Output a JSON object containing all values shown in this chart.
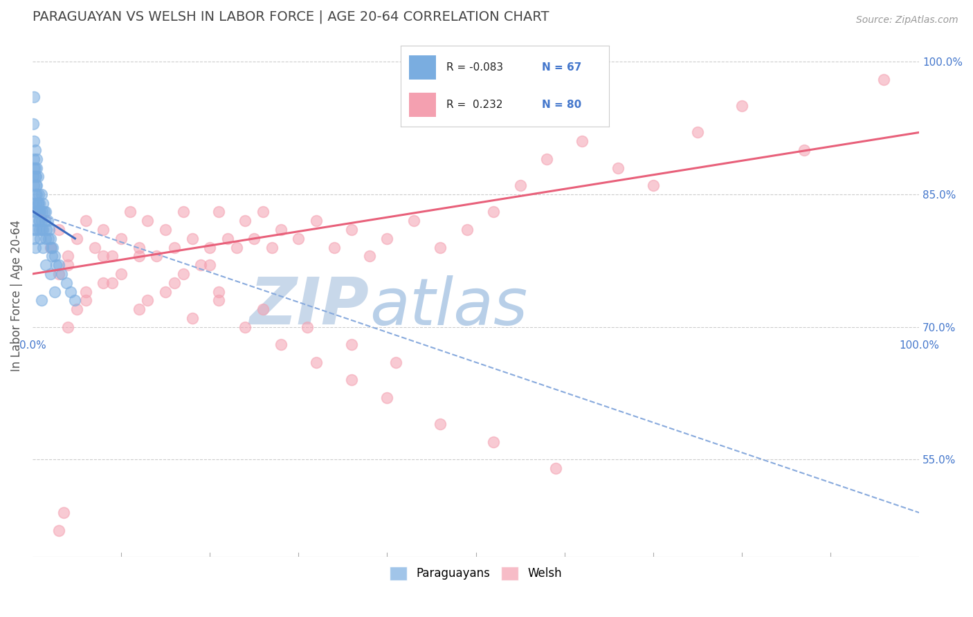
{
  "title": "PARAGUAYAN VS WELSH IN LABOR FORCE | AGE 20-64 CORRELATION CHART",
  "source_text": "Source: ZipAtlas.com",
  "ylabel": "In Labor Force | Age 20-64",
  "xlim": [
    0.0,
    1.0
  ],
  "ylim": [
    0.44,
    1.03
  ],
  "yticks_right": [
    0.55,
    0.7,
    0.85,
    1.0
  ],
  "ytick_right_labels": [
    "55.0%",
    "70.0%",
    "85.0%",
    "100.0%"
  ],
  "legend_r_paraguayan": "-0.083",
  "legend_n_paraguayan": "67",
  "legend_r_welsh": "0.232",
  "legend_n_welsh": "80",
  "paraguayan_color": "#7aade0",
  "welsh_color": "#f4a0b0",
  "paraguayan_line_color": "#3a6abf",
  "welsh_line_color": "#e8607a",
  "dashed_line_color": "#88aadd",
  "watermark_zip_color": "#c8d8ea",
  "watermark_atlas_color": "#b8cfe8",
  "background_color": "#ffffff",
  "grid_color": "#cccccc",
  "title_color": "#444444",
  "axis_label_color": "#555555",
  "right_tick_color": "#4477cc",
  "paraguayan_x": [
    0.001,
    0.001,
    0.001,
    0.002,
    0.002,
    0.002,
    0.002,
    0.003,
    0.003,
    0.003,
    0.003,
    0.004,
    0.004,
    0.004,
    0.005,
    0.005,
    0.005,
    0.006,
    0.006,
    0.007,
    0.007,
    0.008,
    0.008,
    0.009,
    0.009,
    0.01,
    0.01,
    0.011,
    0.012,
    0.012,
    0.013,
    0.014,
    0.015,
    0.015,
    0.016,
    0.017,
    0.018,
    0.019,
    0.02,
    0.021,
    0.022,
    0.023,
    0.025,
    0.027,
    0.03,
    0.033,
    0.038,
    0.043,
    0.048,
    0.001,
    0.002,
    0.002,
    0.003,
    0.003,
    0.004,
    0.005,
    0.005,
    0.006,
    0.007,
    0.008,
    0.01,
    0.012,
    0.015,
    0.02,
    0.025,
    0.002,
    0.01
  ],
  "paraguayan_y": [
    0.87,
    0.84,
    0.81,
    0.89,
    0.86,
    0.83,
    0.8,
    0.88,
    0.85,
    0.82,
    0.79,
    0.87,
    0.84,
    0.81,
    0.89,
    0.86,
    0.83,
    0.87,
    0.84,
    0.85,
    0.82,
    0.84,
    0.81,
    0.83,
    0.8,
    0.85,
    0.82,
    0.83,
    0.84,
    0.81,
    0.83,
    0.82,
    0.83,
    0.8,
    0.81,
    0.82,
    0.8,
    0.81,
    0.8,
    0.79,
    0.78,
    0.79,
    0.78,
    0.77,
    0.77,
    0.76,
    0.75,
    0.74,
    0.73,
    0.93,
    0.91,
    0.88,
    0.9,
    0.87,
    0.86,
    0.88,
    0.85,
    0.84,
    0.83,
    0.82,
    0.81,
    0.79,
    0.77,
    0.76,
    0.74,
    0.96,
    0.73
  ],
  "welsh_x": [
    0.02,
    0.03,
    0.04,
    0.05,
    0.06,
    0.07,
    0.08,
    0.09,
    0.1,
    0.11,
    0.12,
    0.13,
    0.14,
    0.15,
    0.16,
    0.17,
    0.18,
    0.19,
    0.2,
    0.21,
    0.22,
    0.23,
    0.24,
    0.25,
    0.26,
    0.27,
    0.28,
    0.3,
    0.32,
    0.34,
    0.36,
    0.38,
    0.4,
    0.43,
    0.46,
    0.49,
    0.52,
    0.55,
    0.58,
    0.62,
    0.66,
    0.7,
    0.75,
    0.8,
    0.87,
    0.96,
    0.03,
    0.06,
    0.09,
    0.12,
    0.15,
    0.18,
    0.21,
    0.24,
    0.28,
    0.32,
    0.36,
    0.4,
    0.46,
    0.52,
    0.59,
    0.04,
    0.08,
    0.12,
    0.17,
    0.21,
    0.26,
    0.31,
    0.36,
    0.41,
    0.2,
    0.16,
    0.13,
    0.1,
    0.08,
    0.06,
    0.05,
    0.04,
    0.035,
    0.03
  ],
  "welsh_y": [
    0.79,
    0.81,
    0.78,
    0.8,
    0.82,
    0.79,
    0.81,
    0.78,
    0.8,
    0.83,
    0.79,
    0.82,
    0.78,
    0.81,
    0.79,
    0.83,
    0.8,
    0.77,
    0.79,
    0.83,
    0.8,
    0.79,
    0.82,
    0.8,
    0.83,
    0.79,
    0.81,
    0.8,
    0.82,
    0.79,
    0.81,
    0.78,
    0.8,
    0.82,
    0.79,
    0.81,
    0.83,
    0.86,
    0.89,
    0.91,
    0.88,
    0.86,
    0.92,
    0.95,
    0.9,
    0.98,
    0.76,
    0.73,
    0.75,
    0.72,
    0.74,
    0.71,
    0.73,
    0.7,
    0.68,
    0.66,
    0.64,
    0.62,
    0.59,
    0.57,
    0.54,
    0.77,
    0.75,
    0.78,
    0.76,
    0.74,
    0.72,
    0.7,
    0.68,
    0.66,
    0.77,
    0.75,
    0.73,
    0.76,
    0.78,
    0.74,
    0.72,
    0.7,
    0.49,
    0.47
  ],
  "paraguayan_line_x": [
    0.0,
    0.048
  ],
  "paraguayan_line_y": [
    0.831,
    0.8
  ],
  "welsh_line_x": [
    0.0,
    1.0
  ],
  "welsh_line_y": [
    0.76,
    0.92
  ],
  "dashed_line_x": [
    0.0,
    1.0
  ],
  "dashed_line_y": [
    0.83,
    0.49
  ]
}
